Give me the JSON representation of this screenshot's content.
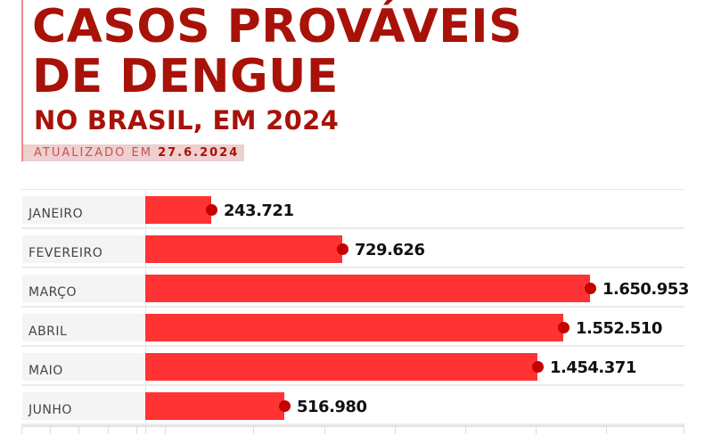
{
  "header": {
    "title_line1": "CASOS PROVÁVEIS",
    "title_line2": "DE DENGUE",
    "subtitle": "NO BRASIL, EM 2024",
    "updated_prefix": "ATUALIZADO EM",
    "updated_date": "27.6.2024"
  },
  "colors": {
    "title": "#a81208",
    "bar": "#ff3333",
    "dot": "#c40000",
    "label_bg": "#f4f4f4"
  },
  "rows": [
    {
      "label": "JANEIRO",
      "value": 243721,
      "value_label": "243.721"
    },
    {
      "label": "FEVEREIRO",
      "value": 729626,
      "value_label": "729.626"
    },
    {
      "label": "MARÇO",
      "value": 1650953,
      "value_label": "1.650.953"
    },
    {
      "label": "ABRIL",
      "value": 1552510,
      "value_label": "1.552.510"
    },
    {
      "label": "MAIO",
      "value": 1454371,
      "value_label": "1.454.371"
    },
    {
      "label": "JUNHO",
      "value": 516980,
      "value_label": "516.980"
    }
  ],
  "chart_data": {
    "type": "bar",
    "orientation": "horizontal",
    "title": "CASOS PROVÁVEIS DE DENGUE",
    "subtitle": "NO BRASIL, EM 2024",
    "annotation": "ATUALIZADO EM 27.6.2024",
    "categories": [
      "JANEIRO",
      "FEVEREIRO",
      "MARÇO",
      "ABRIL",
      "MAIO",
      "JUNHO"
    ],
    "values": [
      243721,
      729626,
      1650953,
      1552510,
      1454371,
      516980
    ],
    "xlabel": "",
    "ylabel": "",
    "data_labels": [
      "243.721",
      "729.626",
      "1.650.953",
      "1.552.510",
      "1.454.371",
      "516.980"
    ],
    "grid": true,
    "legend": "none"
  }
}
